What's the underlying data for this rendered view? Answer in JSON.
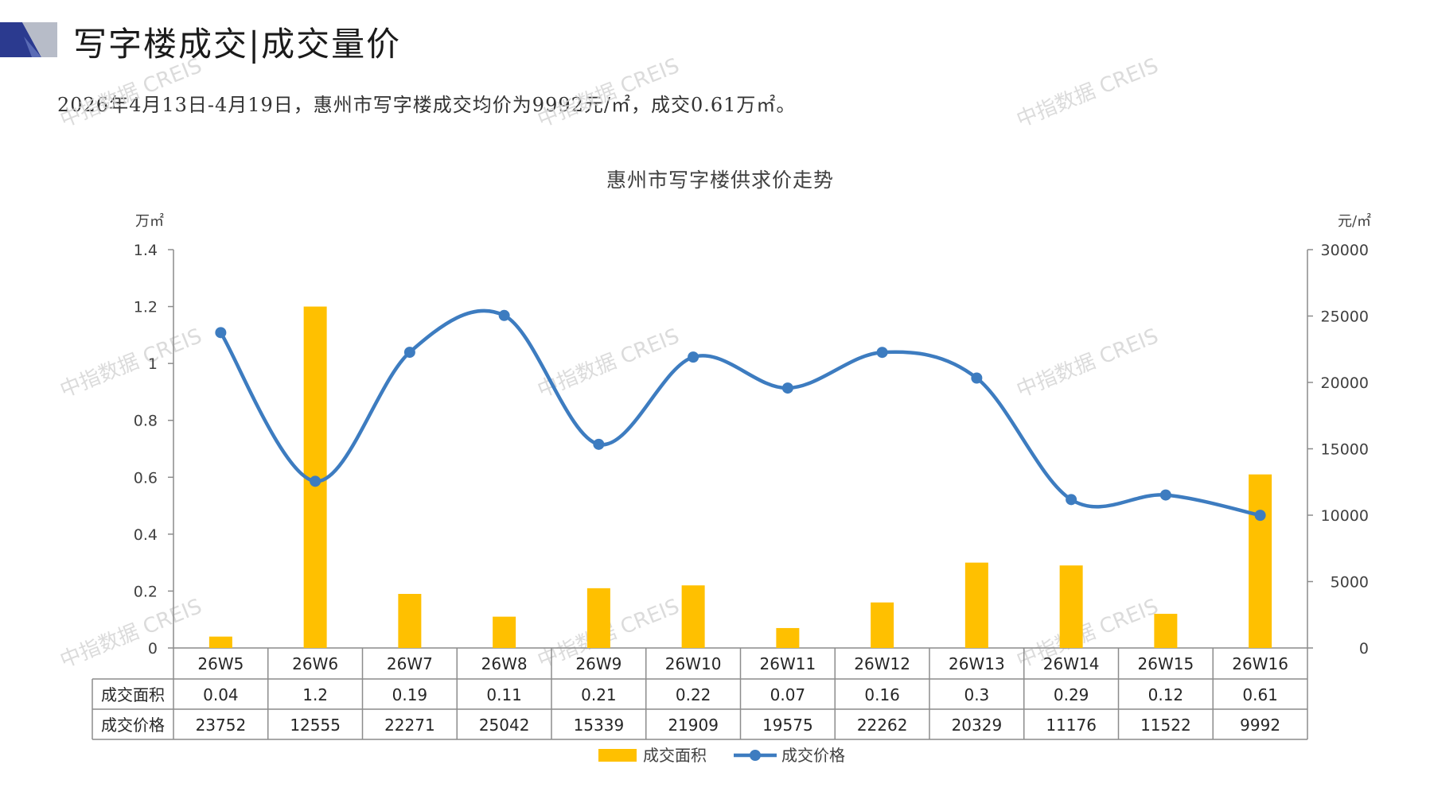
{
  "header": {
    "title": "写字楼成交|成交量价",
    "summary": "2026年4月13日-4月19日，惠州市写字楼成交均价为9992元/㎡，成交0.61万㎡。"
  },
  "watermark": "中指数据 CREIS",
  "colors": {
    "bar": "#FFC000",
    "line": "#3D7CC0",
    "navy": "#2B3A8F",
    "grey": "#B7BCC8"
  },
  "chart_data": {
    "type": "bar+line",
    "title": "惠州市写字楼供求价走势",
    "left_axis_unit": "万㎡",
    "right_axis_unit": "元/㎡",
    "left_ylim": [
      0,
      1.4
    ],
    "left_ticks": [
      "1.4",
      "1.2",
      "1",
      "0.8",
      "0.6",
      "0.4",
      "0.2",
      "0"
    ],
    "right_ylim": [
      0,
      30000
    ],
    "right_ticks": [
      "30000",
      "25000",
      "20000",
      "15000",
      "10000",
      "5000",
      "0"
    ],
    "categories": [
      "26W5",
      "26W6",
      "26W7",
      "26W8",
      "26W9",
      "26W10",
      "26W11",
      "26W12",
      "26W13",
      "26W14",
      "26W15",
      "26W16"
    ],
    "series": [
      {
        "name": "成交面积",
        "type": "bar",
        "axis": "left",
        "values": [
          0.04,
          1.2,
          0.19,
          0.11,
          0.21,
          0.22,
          0.07,
          0.16,
          0.3,
          0.29,
          0.12,
          0.61
        ],
        "labels": [
          "0.04",
          "1.2",
          "0.19",
          "0.11",
          "0.21",
          "0.22",
          "0.07",
          "0.16",
          "0.3",
          "0.29",
          "0.12",
          "0.61"
        ]
      },
      {
        "name": "成交价格",
        "type": "line",
        "axis": "right",
        "values": [
          23752,
          12555,
          22271,
          25042,
          15339,
          21909,
          19575,
          22262,
          20329,
          11176,
          11522,
          9992
        ],
        "labels": [
          "23752",
          "12555",
          "22271",
          "25042",
          "15339",
          "21909",
          "19575",
          "22262",
          "20329",
          "11176",
          "11522",
          "9992"
        ]
      }
    ],
    "legend": "bottom"
  }
}
